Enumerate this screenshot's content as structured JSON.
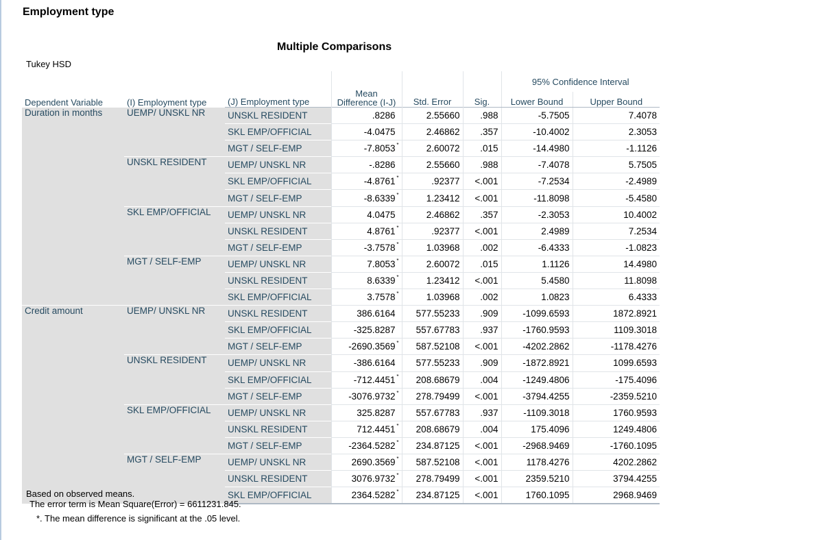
{
  "heading": "Employment type",
  "table_title": "Multiple Comparisons",
  "method": "Tukey HSD",
  "headers": {
    "dependent_variable": "Dependent Variable",
    "i_type": "(I) Employment type",
    "j_type": "(J) Employment type",
    "mean_difference": "Mean Difference (I-J)",
    "std_error": "Std. Error",
    "sig": "Sig.",
    "ci": "95% Confidence Interval",
    "lower": "Lower Bound",
    "upper": "Upper Bound"
  },
  "rows": [
    {
      "dv": "Duration in months",
      "i": "UEMP/ UNSKL NR",
      "j": "UNSKL RESIDENT",
      "md": ".8286",
      "star": "",
      "se": "2.55660",
      "sig": ".988",
      "lo": "-5.7505",
      "hi": "7.4078"
    },
    {
      "dv": "",
      "i": "",
      "j": "SKL EMP/OFFICIAL",
      "md": "-4.0475",
      "star": "",
      "se": "2.46862",
      "sig": ".357",
      "lo": "-10.4002",
      "hi": "2.3053"
    },
    {
      "dv": "",
      "i": "",
      "j": "MGT / SELF-EMP",
      "md": "-7.8053",
      "star": "*",
      "se": "2.60072",
      "sig": ".015",
      "lo": "-14.4980",
      "hi": "-1.1126"
    },
    {
      "dv": "",
      "i": "UNSKL RESIDENT",
      "j": "UEMP/ UNSKL NR",
      "md": "-.8286",
      "star": "",
      "se": "2.55660",
      "sig": ".988",
      "lo": "-7.4078",
      "hi": "5.7505"
    },
    {
      "dv": "",
      "i": "",
      "j": "SKL EMP/OFFICIAL",
      "md": "-4.8761",
      "star": "*",
      "se": ".92377",
      "sig": "<.001",
      "lo": "-7.2534",
      "hi": "-2.4989"
    },
    {
      "dv": "",
      "i": "",
      "j": "MGT / SELF-EMP",
      "md": "-8.6339",
      "star": "*",
      "se": "1.23412",
      "sig": "<.001",
      "lo": "-11.8098",
      "hi": "-5.4580"
    },
    {
      "dv": "",
      "i": "SKL EMP/OFFICIAL",
      "j": "UEMP/ UNSKL NR",
      "md": "4.0475",
      "star": "",
      "se": "2.46862",
      "sig": ".357",
      "lo": "-2.3053",
      "hi": "10.4002"
    },
    {
      "dv": "",
      "i": "",
      "j": "UNSKL RESIDENT",
      "md": "4.8761",
      "star": "*",
      "se": ".92377",
      "sig": "<.001",
      "lo": "2.4989",
      "hi": "7.2534"
    },
    {
      "dv": "",
      "i": "",
      "j": "MGT / SELF-EMP",
      "md": "-3.7578",
      "star": "*",
      "se": "1.03968",
      "sig": ".002",
      "lo": "-6.4333",
      "hi": "-1.0823"
    },
    {
      "dv": "",
      "i": "MGT / SELF-EMP",
      "j": "UEMP/ UNSKL NR",
      "md": "7.8053",
      "star": "*",
      "se": "2.60072",
      "sig": ".015",
      "lo": "1.1126",
      "hi": "14.4980"
    },
    {
      "dv": "",
      "i": "",
      "j": "UNSKL RESIDENT",
      "md": "8.6339",
      "star": "*",
      "se": "1.23412",
      "sig": "<.001",
      "lo": "5.4580",
      "hi": "11.8098"
    },
    {
      "dv": "",
      "i": "",
      "j": "SKL EMP/OFFICIAL",
      "md": "3.7578",
      "star": "*",
      "se": "1.03968",
      "sig": ".002",
      "lo": "1.0823",
      "hi": "6.4333"
    },
    {
      "dv": "Credit amount",
      "i": "UEMP/ UNSKL NR",
      "j": "UNSKL RESIDENT",
      "md": "386.6164",
      "star": "",
      "se": "577.55233",
      "sig": ".909",
      "lo": "-1099.6593",
      "hi": "1872.8921"
    },
    {
      "dv": "",
      "i": "",
      "j": "SKL EMP/OFFICIAL",
      "md": "-325.8287",
      "star": "",
      "se": "557.67783",
      "sig": ".937",
      "lo": "-1760.9593",
      "hi": "1109.3018"
    },
    {
      "dv": "",
      "i": "",
      "j": "MGT / SELF-EMP",
      "md": "-2690.3569",
      "star": "*",
      "se": "587.52108",
      "sig": "<.001",
      "lo": "-4202.2862",
      "hi": "-1178.4276"
    },
    {
      "dv": "",
      "i": "UNSKL RESIDENT",
      "j": "UEMP/ UNSKL NR",
      "md": "-386.6164",
      "star": "",
      "se": "577.55233",
      "sig": ".909",
      "lo": "-1872.8921",
      "hi": "1099.6593"
    },
    {
      "dv": "",
      "i": "",
      "j": "SKL EMP/OFFICIAL",
      "md": "-712.4451",
      "star": "*",
      "se": "208.68679",
      "sig": ".004",
      "lo": "-1249.4806",
      "hi": "-175.4096"
    },
    {
      "dv": "",
      "i": "",
      "j": "MGT / SELF-EMP",
      "md": "-3076.9732",
      "star": "*",
      "se": "278.79499",
      "sig": "<.001",
      "lo": "-3794.4255",
      "hi": "-2359.5210"
    },
    {
      "dv": "",
      "i": "SKL EMP/OFFICIAL",
      "j": "UEMP/ UNSKL NR",
      "md": "325.8287",
      "star": "",
      "se": "557.67783",
      "sig": ".937",
      "lo": "-1109.3018",
      "hi": "1760.9593"
    },
    {
      "dv": "",
      "i": "",
      "j": "UNSKL RESIDENT",
      "md": "712.4451",
      "star": "*",
      "se": "208.68679",
      "sig": ".004",
      "lo": "175.4096",
      "hi": "1249.4806"
    },
    {
      "dv": "",
      "i": "",
      "j": "MGT / SELF-EMP",
      "md": "-2364.5282",
      "star": "*",
      "se": "234.87125",
      "sig": "<.001",
      "lo": "-2968.9469",
      "hi": "-1760.1095"
    },
    {
      "dv": "",
      "i": "MGT / SELF-EMP",
      "j": "UEMP/ UNSKL NR",
      "md": "2690.3569",
      "star": "*",
      "se": "587.52108",
      "sig": "<.001",
      "lo": "1178.4276",
      "hi": "4202.2862"
    },
    {
      "dv": "",
      "i": "",
      "j": "UNSKL RESIDENT",
      "md": "3076.9732",
      "star": "*",
      "se": "278.79499",
      "sig": "<.001",
      "lo": "2359.5210",
      "hi": "3794.4255"
    },
    {
      "dv": "",
      "i": "",
      "j": "SKL EMP/OFFICIAL",
      "md": "2364.5282",
      "star": "*",
      "se": "234.87125",
      "sig": "<.001",
      "lo": "1760.1095",
      "hi": "2968.9469"
    }
  ],
  "notes": {
    "line1": "Based on observed means.",
    "line2": "The error term is Mean Square(Error) = 6611231.845.",
    "line3": "*. The mean difference is significant at the .05 level."
  }
}
